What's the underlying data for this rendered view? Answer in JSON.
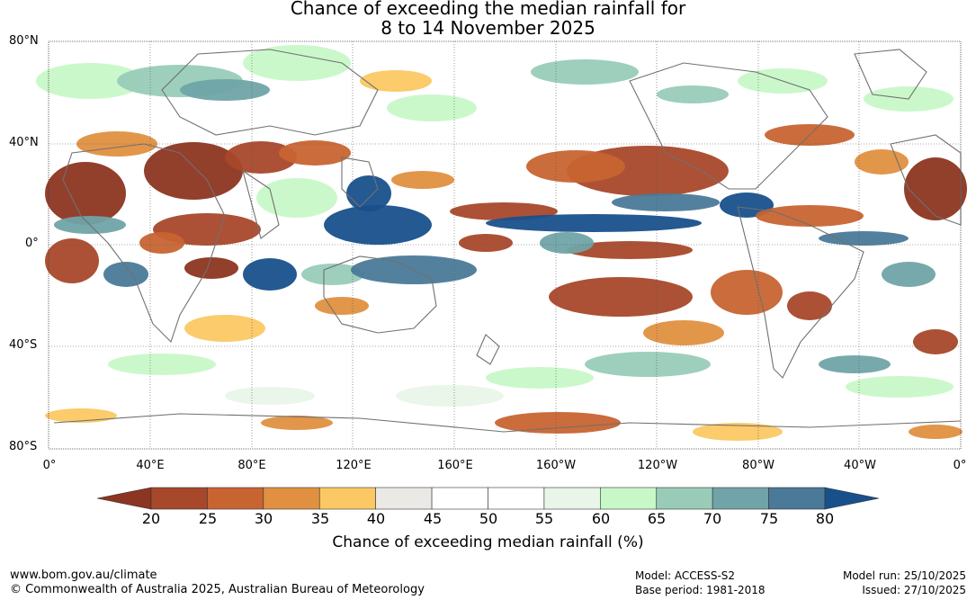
{
  "title": {
    "line1": "Chance of exceeding the median rainfall for",
    "line2": "8 to 14 November 2025"
  },
  "map": {
    "lat_labels": [
      "80°N",
      "40°N",
      "0°",
      "40°S",
      "80°S"
    ],
    "lon_labels": [
      "0°",
      "40°E",
      "80°E",
      "120°E",
      "160°E",
      "160°W",
      "120°W",
      "80°W",
      "40°W",
      "0°"
    ]
  },
  "colorbar": {
    "ticks": [
      "20",
      "25",
      "30",
      "35",
      "40",
      "45",
      "50",
      "55",
      "60",
      "65",
      "70",
      "75",
      "80"
    ],
    "colors": [
      "#8c3520",
      "#a8482a",
      "#c86432",
      "#e09040",
      "#fbc864",
      "#ebe9e6",
      "#ffffff",
      "#ffffff",
      "#e8f5e8",
      "#c8f8c8",
      "#98ccb8",
      "#70a4a8",
      "#4a7a98",
      "#18508c"
    ],
    "label": "Chance of exceeding median rainfall (%)"
  },
  "footer": {
    "url": "www.bom.gov.au/climate",
    "copyright": "© Commonwealth of Australia 2025, Australian Bureau of Meteorology",
    "model": "Model: ACCESS-S2",
    "base_period": "Base period: 1981-2018",
    "model_run": "Model run: 25/10/2025",
    "issued": "Issued: 27/10/2025"
  }
}
